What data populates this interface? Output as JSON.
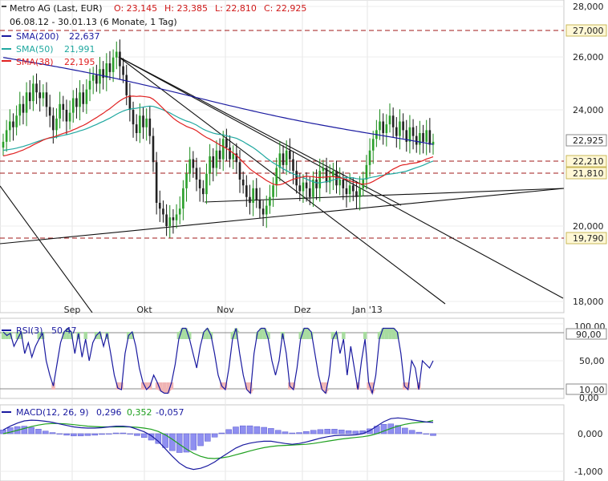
{
  "price": {
    "title": "Metro AG (Last, EUR)",
    "ohlc": {
      "o_label": "O: 23,145",
      "h_label": "H: 23,385",
      "l_label": "L: 22,810",
      "c_label": "C: 22,925"
    },
    "date_range": "06.08.12 - 30.01.13 (6 Monate, 1 Tag)",
    "sma": [
      {
        "name": "SMA(200)",
        "value": "22,637",
        "color": "#1a1aa0"
      },
      {
        "name": "SMA(50)",
        "value": "21,991",
        "color": "#20a8a0"
      },
      {
        "name": "SMA(38)",
        "value": "22,195",
        "color": "#e02020"
      }
    ],
    "y_ticks": [
      "28,000",
      "26,000",
      "24,000",
      "20,000",
      "18,000"
    ],
    "x_ticks": [
      "Sep",
      "Okt",
      "Nov",
      "Dez",
      "Jan '13"
    ],
    "levels": [
      "27,000",
      "22,210",
      "21,810",
      "19,790"
    ],
    "last_label": "22,925"
  },
  "rsi": {
    "name": "RSI(3)",
    "value": "50,47",
    "ticks": [
      "100,00",
      "90,00",
      "50,00",
      "10,00",
      "0,00"
    ]
  },
  "macd": {
    "name": "MACD(12, 26, 9)",
    "v1": "0,296",
    "v2": "0,352",
    "v3": "-0,057",
    "ticks": [
      "0,000",
      "-1,000"
    ]
  },
  "chart_data": [
    {
      "type": "candlestick",
      "title": "Metro AG (Last, EUR)",
      "ylim": [
        17.5,
        28.2
      ],
      "y_ticks": [
        18,
        20,
        24,
        26,
        28
      ],
      "x_ticks": [
        "Sep",
        "Okt",
        "Nov",
        "Dez",
        "Jan '13"
      ],
      "close": [
        22.9,
        23.3,
        23.6,
        23.4,
        23.8,
        24.2,
        23.9,
        24.6,
        24.3,
        24.9,
        24.6,
        24.4,
        24.6,
        24.1,
        23.8,
        23.3,
        23.7,
        24.2,
        24.0,
        23.6,
        23.9,
        24.4,
        24.1,
        24.6,
        24.2,
        24.7,
        25.0,
        25.2,
        24.9,
        25.4,
        25.1,
        25.6,
        25.3,
        25.8,
        26.0,
        25.5,
        25.2,
        24.5,
        24.0,
        23.5,
        23.2,
        23.8,
        23.4,
        23.7,
        23.1,
        22.2,
        20.8,
        20.6,
        20.4,
        20.0,
        20.3,
        20.2,
        20.4,
        20.6,
        21.3,
        21.8,
        22.3,
        22.0,
        21.6,
        21.3,
        21.1,
        21.8,
        22.4,
        22.0,
        22.6,
        22.3,
        23.0,
        22.7,
        22.3,
        22.5,
        22.2,
        21.6,
        21.4,
        21.0,
        20.8,
        21.3,
        20.9,
        20.6,
        20.4,
        20.7,
        21.0,
        21.4,
        22.0,
        22.5,
        22.1,
        22.6,
        22.3,
        21.9,
        21.4,
        21.2,
        21.5,
        21.3,
        21.0,
        21.6,
        21.3,
        21.9,
        22.0,
        21.5,
        21.7,
        21.9,
        21.4,
        21.6,
        21.3,
        21.1,
        21.4,
        21.2,
        21.0,
        21.3,
        21.6,
        22.1,
        22.6,
        23.0,
        23.3,
        23.6,
        23.2,
        23.5,
        23.8,
        23.4,
        23.1,
        23.6,
        23.3,
        22.9,
        23.4,
        23.1,
        22.8,
        23.2,
        22.9,
        23.3,
        22.8,
        22.9
      ],
      "lines": {
        "sma200": "blue",
        "sma50": "teal",
        "sma38": "red"
      },
      "horizontal_levels": [
        27.0,
        22.21,
        21.81,
        19.79
      ],
      "last": 22.925
    },
    {
      "type": "line",
      "title": "RSI(3)",
      "ylim": [
        0,
        100
      ],
      "y_ticks": [
        0,
        10,
        50,
        90,
        100
      ],
      "values": [
        90,
        85,
        88,
        70,
        80,
        90,
        60,
        75,
        55,
        70,
        80,
        88,
        50,
        30,
        15,
        45,
        75,
        90,
        95,
        90,
        60,
        88,
        55,
        80,
        50,
        75,
        85,
        90,
        70,
        88,
        60,
        30,
        12,
        10,
        60,
        85,
        90,
        70,
        40,
        20,
        10,
        15,
        30,
        20,
        8,
        5,
        5,
        20,
        45,
        80,
        95,
        95,
        80,
        60,
        40,
        70,
        90,
        95,
        85,
        60,
        30,
        15,
        10,
        40,
        80,
        95,
        60,
        30,
        10,
        5,
        60,
        90,
        95,
        95,
        80,
        50,
        30,
        50,
        88,
        60,
        15,
        10,
        40,
        80,
        95,
        95,
        90,
        60,
        30,
        10,
        5,
        30,
        80,
        90,
        60,
        80,
        30,
        70,
        40,
        10,
        50,
        80,
        20,
        5,
        30,
        80,
        95,
        95,
        95,
        95,
        90,
        60,
        15,
        10,
        50,
        40,
        10,
        50,
        45,
        40,
        50
      ],
      "zones": [
        10,
        90
      ]
    },
    {
      "type": "line",
      "title": "MACD(12, 26, 9)",
      "ylim": [
        -1.1,
        0.9
      ],
      "y_ticks": [
        0,
        -1
      ],
      "macd": [
        0.1,
        0.2,
        0.28,
        0.34,
        0.36,
        0.35,
        0.33,
        0.3,
        0.26,
        0.22,
        0.18,
        0.16,
        0.15,
        0.15,
        0.16,
        0.18,
        0.2,
        0.2,
        0.18,
        0.12,
        0.05,
        -0.05,
        -0.2,
        -0.4,
        -0.6,
        -0.78,
        -0.9,
        -0.95,
        -0.92,
        -0.85,
        -0.75,
        -0.62,
        -0.5,
        -0.38,
        -0.3,
        -0.25,
        -0.22,
        -0.2,
        -0.2,
        -0.23,
        -0.26,
        -0.28,
        -0.26,
        -0.22,
        -0.17,
        -0.12,
        -0.08,
        -0.05,
        -0.04,
        -0.04,
        -0.03,
        0.0,
        0.08,
        0.2,
        0.32,
        0.4,
        0.42,
        0.4,
        0.37,
        0.34,
        0.31,
        0.3
      ],
      "signal": [
        0.0,
        0.04,
        0.09,
        0.14,
        0.19,
        0.23,
        0.26,
        0.27,
        0.27,
        0.26,
        0.24,
        0.22,
        0.2,
        0.19,
        0.18,
        0.18,
        0.18,
        0.18,
        0.18,
        0.17,
        0.15,
        0.12,
        0.06,
        -0.03,
        -0.15,
        -0.28,
        -0.41,
        -0.52,
        -0.6,
        -0.65,
        -0.66,
        -0.64,
        -0.61,
        -0.56,
        -0.51,
        -0.46,
        -0.41,
        -0.37,
        -0.34,
        -0.32,
        -0.31,
        -0.3,
        -0.29,
        -0.28,
        -0.26,
        -0.23,
        -0.2,
        -0.17,
        -0.14,
        -0.12,
        -0.1,
        -0.08,
        -0.05,
        0.0,
        0.07,
        0.14,
        0.2,
        0.25,
        0.28,
        0.3,
        0.31,
        0.35
      ]
    }
  ]
}
